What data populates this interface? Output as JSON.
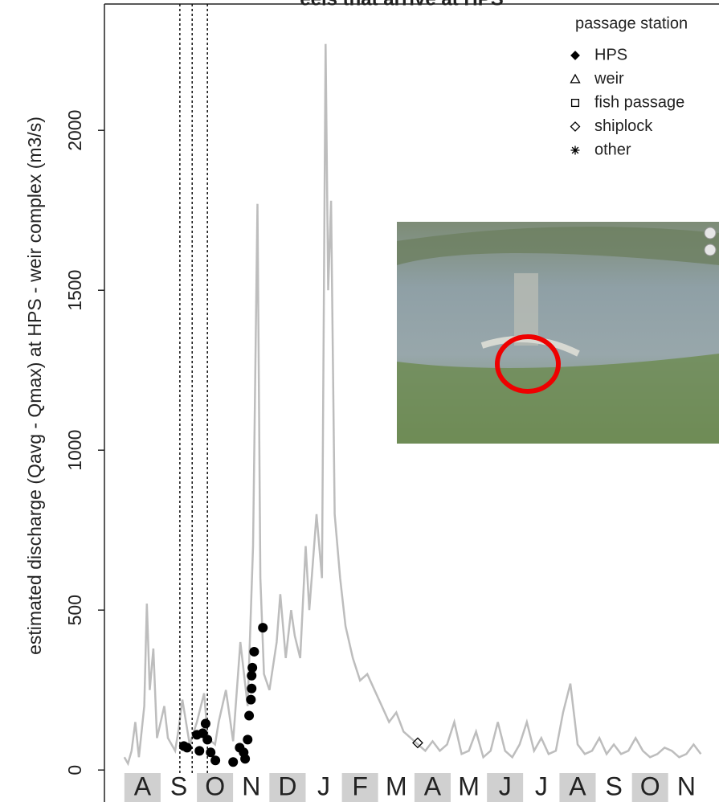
{
  "chart_data": {
    "type": "line",
    "title": "eels that arrive at HPS",
    "y_label": "estimated discharge (Qavg - Qmax) at HPS - weir complex (m3/s)",
    "categories": [
      "A",
      "S",
      "O",
      "N",
      "D",
      "J",
      "F",
      "M",
      "A",
      "M",
      "J",
      "J",
      "A",
      "S",
      "O",
      "N"
    ],
    "xlim": [
      -0.55,
      16.4
    ],
    "ylim": [
      -100,
      2395
    ],
    "yticks": [
      0,
      500,
      1000,
      1500,
      2000
    ],
    "discharge": {
      "color": "#bdbdbd",
      "x": [
        0.0,
        0.1,
        0.2,
        0.3,
        0.4,
        0.55,
        0.62,
        0.7,
        0.8,
        0.9,
        1.0,
        1.1,
        1.2,
        1.4,
        1.5,
        1.6,
        1.8,
        2.0,
        2.2,
        2.3,
        2.5,
        2.6,
        2.8,
        3.0,
        3.2,
        3.4,
        3.55,
        3.67,
        3.75,
        3.85,
        4.0,
        4.2,
        4.3,
        4.45,
        4.6,
        4.7,
        4.85,
        5.0,
        5.1,
        5.3,
        5.45,
        5.55,
        5.62,
        5.7,
        5.8,
        5.95,
        6.1,
        6.3,
        6.5,
        6.7,
        6.9,
        7.1,
        7.3,
        7.5,
        7.7,
        7.9,
        8.1,
        8.3,
        8.5,
        8.7,
        8.9,
        9.1,
        9.3,
        9.5,
        9.7,
        9.9,
        10.1,
        10.3,
        10.5,
        10.7,
        10.9,
        11.1,
        11.3,
        11.5,
        11.7,
        11.9,
        12.1,
        12.3,
        12.5,
        12.7,
        12.9,
        13.1,
        13.3,
        13.5,
        13.7,
        13.9,
        14.1,
        14.3,
        14.5,
        14.7,
        14.9,
        15.1,
        15.3,
        15.5,
        15.7,
        15.9
      ],
      "values": [
        40,
        20,
        60,
        150,
        40,
        200,
        520,
        250,
        380,
        100,
        150,
        200,
        100,
        60,
        130,
        220,
        80,
        150,
        240,
        100,
        80,
        150,
        250,
        90,
        400,
        200,
        700,
        1770,
        600,
        300,
        250,
        400,
        550,
        350,
        500,
        420,
        350,
        700,
        500,
        800,
        600,
        2270,
        1500,
        1780,
        800,
        600,
        450,
        350,
        280,
        300,
        250,
        200,
        150,
        180,
        120,
        100,
        80,
        60,
        90,
        60,
        80,
        150,
        50,
        60,
        120,
        40,
        60,
        150,
        60,
        40,
        80,
        150,
        60,
        100,
        50,
        60,
        180,
        270,
        80,
        50,
        60,
        100,
        50,
        80,
        50,
        60,
        100,
        60,
        40,
        50,
        70,
        60,
        40,
        50,
        80,
        50
      ]
    },
    "vlines": [
      1.53,
      1.87,
      2.29
    ],
    "legend_title": "passage station",
    "passage_series": [
      {
        "name": "HPS",
        "marker": "filled-diamond",
        "x": [
          1.64,
          1.73,
          2.0,
          2.07,
          2.16,
          2.24,
          2.29,
          2.38,
          2.51,
          3.0,
          3.18,
          3.29,
          3.33,
          3.4,
          3.44,
          3.49,
          3.51,
          3.51,
          3.53,
          3.58,
          3.82
        ],
        "values": [
          75,
          70,
          110,
          60,
          115,
          145,
          95,
          55,
          30,
          25,
          70,
          55,
          35,
          95,
          170,
          220,
          295,
          255,
          320,
          370,
          445
        ]
      },
      {
        "name": "weir",
        "marker": "triangle",
        "x": [],
        "values": []
      },
      {
        "name": "fish passage",
        "marker": "square",
        "x": [],
        "values": []
      },
      {
        "name": "shiplock",
        "marker": "diamond",
        "x": [
          8.09
        ],
        "values": [
          85
        ]
      },
      {
        "name": "other",
        "marker": "asterisk",
        "x": [],
        "values": []
      }
    ]
  }
}
